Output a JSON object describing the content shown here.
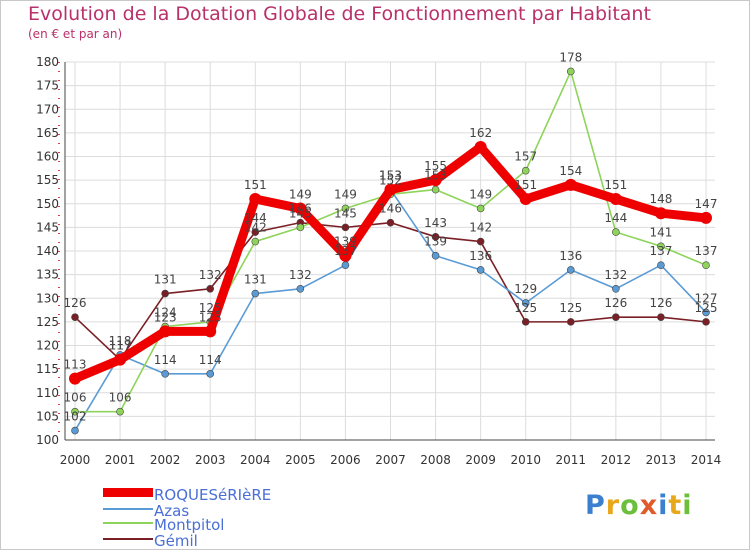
{
  "title": "Evolution de la Dotation Globale de Fonctionnement par Habitant",
  "subtitle": "(en € et par an)",
  "logo": {
    "text": "Proxiti",
    "colors": [
      "#3a7fd0",
      "#e8a81c",
      "#6bbf3a",
      "#e05a2b",
      "#3a7fd0",
      "#e8a81c",
      "#6bbf3a"
    ]
  },
  "chart_data": {
    "type": "line",
    "title": "Evolution de la Dotation Globale de Fonctionnement par Habitant",
    "subtitle": "(en € et par an)",
    "xlabel": "",
    "ylabel": "",
    "x": [
      "2000",
      "2001",
      "2002",
      "2003",
      "2004",
      "2005",
      "2006",
      "2007",
      "2008",
      "2009",
      "2010",
      "2011",
      "2012",
      "2013",
      "2014"
    ],
    "ylim": [
      100,
      180
    ],
    "yticks": [
      "100",
      "105",
      "110",
      "115",
      "120",
      "125",
      "130",
      "135",
      "140",
      "145",
      "150",
      "155",
      "160",
      "165",
      "170",
      "175",
      "180"
    ],
    "grid": true,
    "legend_position": "bottom-left",
    "series": [
      {
        "name": "ROQUESéRIèRE",
        "color": "#ee0000",
        "style": "thick",
        "values": [
          113,
          117,
          123,
          123,
          151,
          149,
          139,
          153,
          155,
          162,
          151,
          154,
          151,
          148,
          147
        ]
      },
      {
        "name": "Azas",
        "color": "#5b9bd5",
        "style": "thin",
        "values": [
          102,
          118,
          114,
          114,
          131,
          132,
          137,
          153,
          139,
          136,
          129,
          136,
          132,
          137,
          127
        ]
      },
      {
        "name": "Montpitol",
        "color": "#8fd45a",
        "style": "thin",
        "values": [
          106,
          106,
          124,
          125,
          142,
          145,
          149,
          152,
          153,
          149,
          157,
          178,
          144,
          141,
          137
        ]
      },
      {
        "name": "Gémil",
        "color": "#7a1f25",
        "style": "thin",
        "values": [
          126,
          117,
          131,
          132,
          144,
          146,
          145,
          146,
          143,
          142,
          125,
          125,
          126,
          126,
          125
        ]
      }
    ]
  }
}
